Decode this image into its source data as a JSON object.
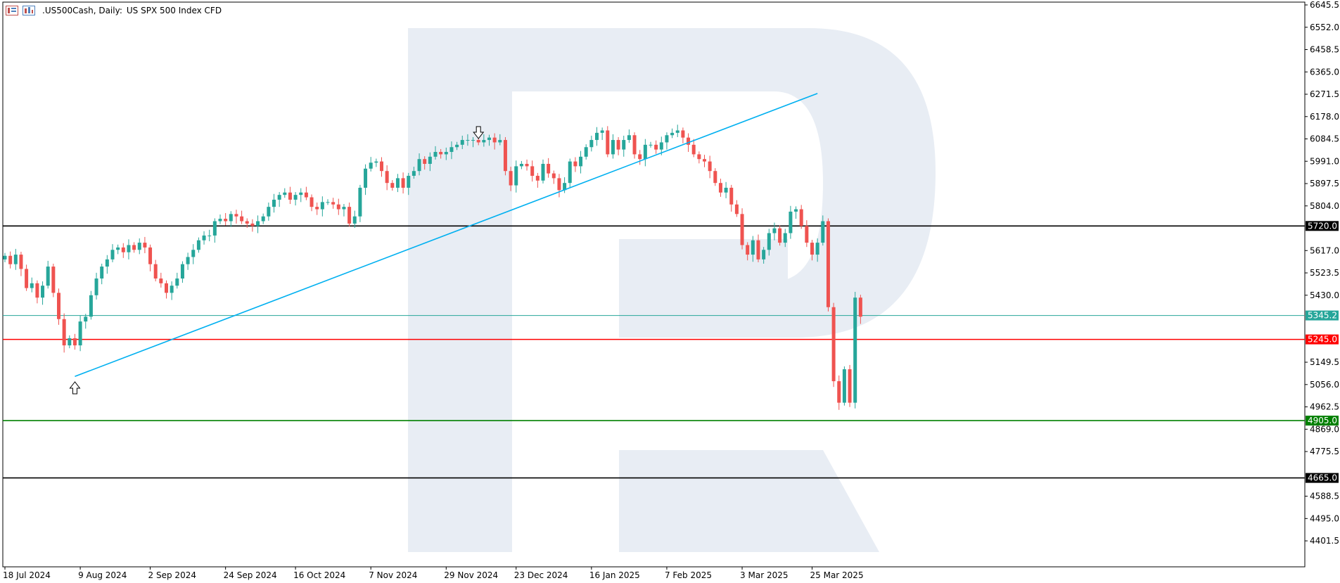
{
  "header": {
    "symbol": ".US500Cash, Daily:",
    "description": "US SPX 500 Index CFD",
    "icons": [
      "chart-bars-icon",
      "chart-candles-icon"
    ]
  },
  "colors": {
    "bull": "#26a69a",
    "bear": "#ef5350",
    "trendline": "#00b0f0",
    "watermark": "#e8edf4",
    "grid_axis": "#000000"
  },
  "chart_data": {
    "type": "candlestick",
    "title": "",
    "ylim": [
      4307.5,
      6645.5
    ],
    "y_ticks": [
      "6645.5",
      "6552.0",
      "6458.5",
      "6365.0",
      "6271.5",
      "6178.0",
      "6084.5",
      "5991.0",
      "5897.5",
      "5804.0",
      "5617.0",
      "5523.5",
      "5430.0",
      "5149.5",
      "5056.0",
      "4962.5",
      "4869.0",
      "4775.5",
      "4588.5",
      "4495.0",
      "4401.5"
    ],
    "x_ticks": [
      "18 Jul 2024",
      "9 Aug 2024",
      "2 Sep 2024",
      "24 Sep 2024",
      "16 Oct 2024",
      "7 Nov 2024",
      "29 Nov 2024",
      "23 Dec 2024",
      "16 Jan 2025",
      "7 Feb 2025",
      "3 Mar 2025",
      "25 Mar 2025"
    ],
    "levels": [
      {
        "value": 5720.0,
        "label": "5720.0",
        "color": "#000000"
      },
      {
        "value": 5345.2,
        "label": "5345.2",
        "color": "#26a69a"
      },
      {
        "value": 5245.0,
        "label": "5245.0",
        "color": "#ff0000"
      },
      {
        "value": 4905.0,
        "label": "4905.0",
        "color": "#008000"
      },
      {
        "value": 4665.0,
        "label": "4665.0",
        "color": "#000000"
      }
    ],
    "closes": [
      5595,
      5560,
      5600,
      5540,
      5460,
      5480,
      5420,
      5470,
      5550,
      5440,
      5330,
      5220,
      5250,
      5220,
      5320,
      5340,
      5430,
      5500,
      5550,
      5580,
      5620,
      5630,
      5610,
      5640,
      5620,
      5650,
      5630,
      5560,
      5500,
      5480,
      5440,
      5470,
      5500,
      5560,
      5590,
      5620,
      5660,
      5680,
      5680,
      5740,
      5750,
      5740,
      5770,
      5760,
      5740,
      5730,
      5720,
      5740,
      5760,
      5800,
      5830,
      5850,
      5860,
      5830,
      5850,
      5860,
      5840,
      5800,
      5790,
      5820,
      5820,
      5810,
      5790,
      5800,
      5730,
      5760,
      5880,
      5960,
      5985,
      5990,
      5950,
      5900,
      5880,
      5920,
      5880,
      5930,
      5950,
      6000,
      5980,
      6010,
      6030,
      6020,
      6030,
      6050,
      6060,
      6080,
      6080,
      6080,
      6070,
      6080,
      6090,
      6070,
      6080,
      5950,
      5890,
      5970,
      5980,
      5970,
      5930,
      5910,
      5980,
      5940,
      5920,
      5870,
      5900,
      5990,
      5970,
      6010,
      6050,
      6080,
      6110,
      6120,
      6020,
      6080,
      6040,
      6080,
      6100,
      6020,
      6000,
      6060,
      6060,
      6040,
      6070,
      6100,
      6110,
      6120,
      6090,
      6060,
      6020,
      6000,
      5990,
      5950,
      5900,
      5860,
      5880,
      5810,
      5770,
      5640,
      5600,
      5660,
      5580,
      5620,
      5690,
      5710,
      5650,
      5690,
      5780,
      5790,
      5720,
      5650,
      5600,
      5650,
      5740,
      5380,
      5070,
      4980,
      5120,
      4980,
      5420,
      5340
    ],
    "trendline": {
      "from": [
        13,
        5090
      ],
      "to": [
        151,
        6275
      ]
    },
    "arrows": [
      {
        "direction": "up",
        "index": 13
      },
      {
        "direction": "down",
        "index": 88
      }
    ]
  }
}
